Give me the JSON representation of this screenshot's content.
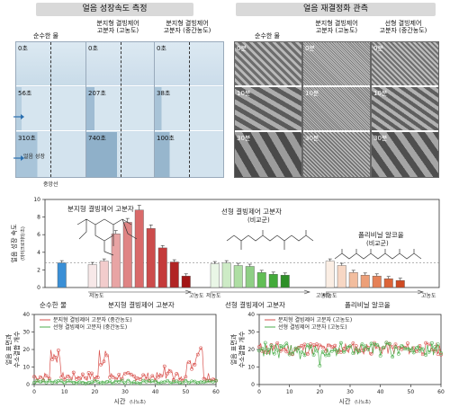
{
  "panels": {
    "left_title": "얼음 성장속도 측정",
    "right_title": "얼음 재결정화 관측",
    "left_cols": [
      "순수한 물",
      "분지형 결빙제어\n고분자 (고농도)",
      "분지형 결빙제어\n고분자 (중간농도)"
    ],
    "right_cols": [
      "순수한 물",
      "분지형 결빙제어\n고분자 (고농도)",
      "선형 결빙제어\n고분자 (중간농도)"
    ],
    "left_times": [
      [
        "0초",
        "56초",
        "310초"
      ],
      [
        "0초",
        "207초",
        "740초"
      ],
      [
        "0초",
        "38초",
        "100초"
      ]
    ],
    "right_times": [
      "0분",
      "10분",
      "30분"
    ],
    "ice_growth_label": "얼음 성장",
    "center_line_label": "중앙선"
  },
  "bar_labels": {
    "branched": "분지형 결빙제어 고분자",
    "linear": "선형 결빙제어 고분자",
    "linear_sub": "(비교군)",
    "pva": "폴리비닐 알코올",
    "pva_sub": "(비교군)",
    "low": "저농도",
    "high": "고농도",
    "pure": "순수한 물"
  },
  "chart_data": [
    {
      "type": "bar",
      "ylabel": "얼음 성장 속도",
      "yunit": "(마이크로미터/초)",
      "ylim": [
        0,
        10
      ],
      "yticks": [
        0,
        2,
        4,
        6,
        8,
        10
      ],
      "reference_line": 2.8,
      "groups": [
        {
          "name": "순수한 물",
          "values": [
            2.8
          ],
          "color": "#3a8fd6"
        },
        {
          "name": "분지형 결빙제어 고분자",
          "values": [
            2.6,
            3.0,
            6.1,
            7.4,
            8.8,
            6.7,
            4.5,
            2.9,
            1.3
          ],
          "colors": [
            "#f7e8e8",
            "#f2cccc",
            "#e8a4a4",
            "#df8484",
            "#d96a6a",
            "#cc4b4b",
            "#c43a3a",
            "#b12424",
            "#a31515"
          ]
        },
        {
          "name": "선형 결빙제어 고분자",
          "values": [
            2.7,
            2.8,
            2.5,
            2.4,
            1.7,
            1.5,
            1.4
          ],
          "colors": [
            "#e9f6e6",
            "#cdebc6",
            "#aedea3",
            "#8fcf85",
            "#62be55",
            "#43aa3a",
            "#2e8f28"
          ]
        },
        {
          "name": "폴리비닐 알코올",
          "values": [
            3.0,
            2.5,
            1.7,
            1.4,
            1.3,
            1.0,
            0.8
          ],
          "colors": [
            "#fbeee4",
            "#f7d7c4",
            "#f2bd9e",
            "#ec9f78",
            "#e58157",
            "#dc6438",
            "#cf4a22"
          ]
        }
      ]
    },
    {
      "type": "line",
      "xlabel": "시간",
      "xunit": "(나노초)",
      "ylabel": "얼음 표면과\n수소결합 개수",
      "xlim": [
        0,
        60
      ],
      "ylim": [
        0,
        40
      ],
      "xticks": [
        0,
        10,
        20,
        30,
        40,
        50,
        60
      ],
      "yticks": [
        0,
        10,
        20,
        30,
        40
      ],
      "series": [
        {
          "name": "분지형 결빙제어 고분자 (중간농도)",
          "color": "#d9534f"
        },
        {
          "name": "선형 결빙제어 고분자 (중간농도)",
          "color": "#4cae4c"
        }
      ]
    },
    {
      "type": "line",
      "xlabel": "시간",
      "xunit": "(나노초)",
      "ylabel": "얼음 표면과\n수소결합 개수",
      "xlim": [
        0,
        60
      ],
      "ylim": [
        0,
        40
      ],
      "xticks": [
        0,
        10,
        20,
        30,
        40,
        50,
        60
      ],
      "yticks": [
        0,
        10,
        20,
        30,
        40
      ],
      "series": [
        {
          "name": "분지형 결빙제어 고분자 (고농도)",
          "color": "#d9534f"
        },
        {
          "name": "선형 결빙제어 고분자 (고농도)",
          "color": "#4cae4c"
        }
      ]
    }
  ]
}
